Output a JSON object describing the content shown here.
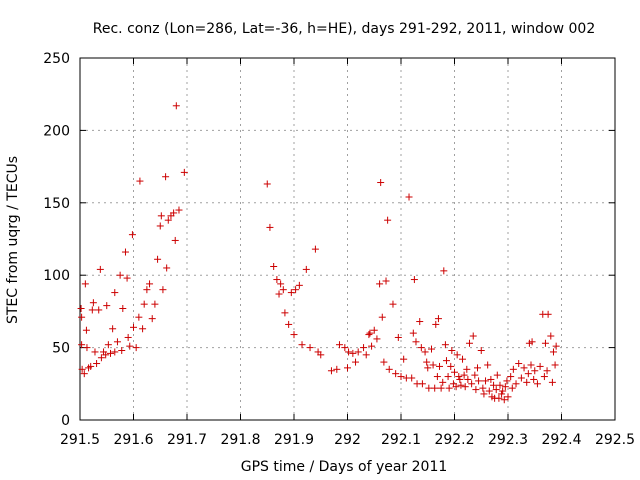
{
  "chart_data": {
    "type": "scatter",
    "title": "Rec. conz (Lon=286, Lat=-36, h=HE), days 291-292, 2011, window 002",
    "xlabel": "GPS time / Days of year 2011",
    "ylabel": "STEC from uqrg / TECUs",
    "xlim": [
      291.5,
      292.5
    ],
    "ylim": [
      0,
      250
    ],
    "xticks": [
      291.5,
      291.6,
      291.7,
      291.8,
      291.9,
      292,
      292.1,
      292.2,
      292.3,
      292.4,
      292.5
    ],
    "xtick_labels": [
      "291.5",
      "291.6",
      "291.7",
      "291.8",
      "291.9",
      "292",
      "292.1",
      "292.2",
      "292.3",
      "292.4",
      "292.5"
    ],
    "yticks": [
      0,
      50,
      100,
      150,
      200,
      250
    ],
    "ytick_labels": [
      "0",
      "50",
      "100",
      "150",
      "200",
      "250"
    ],
    "grid": true,
    "marker": "+",
    "color": "#cc0000",
    "series": [
      {
        "name": "STEC",
        "points": [
          [
            291.502,
            77
          ],
          [
            291.503,
            71
          ],
          [
            291.503,
            52
          ],
          [
            291.504,
            35
          ],
          [
            291.508,
            32
          ],
          [
            291.51,
            94
          ],
          [
            291.512,
            62
          ],
          [
            291.513,
            50
          ],
          [
            291.516,
            36
          ],
          [
            291.52,
            37
          ],
          [
            291.523,
            76
          ],
          [
            291.525,
            81
          ],
          [
            291.528,
            47
          ],
          [
            291.531,
            39
          ],
          [
            291.535,
            76
          ],
          [
            291.538,
            104
          ],
          [
            291.54,
            43
          ],
          [
            291.544,
            47
          ],
          [
            291.548,
            45
          ],
          [
            291.55,
            79
          ],
          [
            291.553,
            52
          ],
          [
            291.557,
            46
          ],
          [
            291.561,
            63
          ],
          [
            291.565,
            88
          ],
          [
            291.565,
            47
          ],
          [
            291.57,
            54
          ],
          [
            291.575,
            100
          ],
          [
            291.578,
            48
          ],
          [
            291.58,
            77
          ],
          [
            291.585,
            116
          ],
          [
            291.588,
            98
          ],
          [
            291.59,
            57
          ],
          [
            291.593,
            51
          ],
          [
            291.598,
            128
          ],
          [
            291.6,
            64
          ],
          [
            291.605,
            50
          ],
          [
            291.61,
            71
          ],
          [
            291.612,
            165
          ],
          [
            291.617,
            63
          ],
          [
            291.62,
            80
          ],
          [
            291.625,
            90
          ],
          [
            291.63,
            94
          ],
          [
            291.635,
            70
          ],
          [
            291.64,
            80
          ],
          [
            291.645,
            111
          ],
          [
            291.65,
            134
          ],
          [
            291.652,
            141
          ],
          [
            291.655,
            90
          ],
          [
            291.66,
            168
          ],
          [
            291.662,
            105
          ],
          [
            291.665,
            138
          ],
          [
            291.67,
            141
          ],
          [
            291.675,
            143
          ],
          [
            291.678,
            124
          ],
          [
            291.68,
            217
          ],
          [
            291.685,
            145
          ],
          [
            291.695,
            171
          ],
          [
            291.85,
            163
          ],
          [
            291.855,
            133
          ],
          [
            291.862,
            106
          ],
          [
            291.868,
            97
          ],
          [
            291.872,
            87
          ],
          [
            291.875,
            94
          ],
          [
            291.88,
            90
          ],
          [
            291.883,
            74
          ],
          [
            291.89,
            66
          ],
          [
            291.895,
            88
          ],
          [
            291.9,
            59
          ],
          [
            291.903,
            90
          ],
          [
            291.91,
            93
          ],
          [
            291.915,
            52
          ],
          [
            291.923,
            104
          ],
          [
            291.93,
            50
          ],
          [
            291.94,
            118
          ],
          [
            291.945,
            47
          ],
          [
            291.95,
            45
          ],
          [
            291.97,
            34
          ],
          [
            291.98,
            35
          ],
          [
            291.985,
            52
          ],
          [
            291.995,
            50
          ],
          [
            292.0,
            36
          ],
          [
            292.002,
            47
          ],
          [
            292.01,
            46
          ],
          [
            292.015,
            40
          ],
          [
            292.02,
            47
          ],
          [
            292.03,
            50
          ],
          [
            292.035,
            45
          ],
          [
            292.04,
            59
          ],
          [
            292.042,
            60
          ],
          [
            292.045,
            51
          ],
          [
            292.05,
            62
          ],
          [
            292.055,
            56
          ],
          [
            292.06,
            94
          ],
          [
            292.062,
            164
          ],
          [
            292.065,
            71
          ],
          [
            292.068,
            40
          ],
          [
            292.072,
            96
          ],
          [
            292.075,
            138
          ],
          [
            292.078,
            35
          ],
          [
            292.085,
            80
          ],
          [
            292.09,
            32
          ],
          [
            292.095,
            57
          ],
          [
            292.1,
            30
          ],
          [
            292.105,
            42
          ],
          [
            292.11,
            29
          ],
          [
            292.115,
            154
          ],
          [
            292.12,
            29
          ],
          [
            292.123,
            60
          ],
          [
            292.125,
            97
          ],
          [
            292.128,
            54
          ],
          [
            292.13,
            25
          ],
          [
            292.135,
            68
          ],
          [
            292.138,
            50
          ],
          [
            292.14,
            25
          ],
          [
            292.145,
            47
          ],
          [
            292.148,
            40
          ],
          [
            292.15,
            36
          ],
          [
            292.152,
            22
          ],
          [
            292.157,
            49
          ],
          [
            292.16,
            38
          ],
          [
            292.163,
            22
          ],
          [
            292.165,
            66
          ],
          [
            292.168,
            30
          ],
          [
            292.17,
            70
          ],
          [
            292.172,
            37
          ],
          [
            292.175,
            22
          ],
          [
            292.178,
            26
          ],
          [
            292.18,
            103
          ],
          [
            292.183,
            52
          ],
          [
            292.185,
            41
          ],
          [
            292.188,
            30
          ],
          [
            292.19,
            22
          ],
          [
            292.193,
            37
          ],
          [
            292.195,
            48
          ],
          [
            292.198,
            25
          ],
          [
            292.2,
            33
          ],
          [
            292.203,
            23
          ],
          [
            292.205,
            45
          ],
          [
            292.208,
            30
          ],
          [
            292.21,
            28
          ],
          [
            292.212,
            24
          ],
          [
            292.215,
            42
          ],
          [
            292.218,
            31
          ],
          [
            292.22,
            23
          ],
          [
            292.223,
            35
          ],
          [
            292.225,
            28
          ],
          [
            292.228,
            53
          ],
          [
            292.232,
            25
          ],
          [
            292.235,
            58
          ],
          [
            292.238,
            31
          ],
          [
            292.24,
            21
          ],
          [
            292.243,
            36
          ],
          [
            292.245,
            27
          ],
          [
            292.25,
            48
          ],
          [
            292.253,
            22
          ],
          [
            292.255,
            18
          ],
          [
            292.258,
            27
          ],
          [
            292.262,
            38
          ],
          [
            292.265,
            20
          ],
          [
            292.268,
            28
          ],
          [
            292.27,
            16
          ],
          [
            292.273,
            24
          ],
          [
            292.275,
            15
          ],
          [
            292.278,
            21
          ],
          [
            292.28,
            31
          ],
          [
            292.283,
            15
          ],
          [
            292.285,
            24
          ],
          [
            292.288,
            18
          ],
          [
            292.29,
            20
          ],
          [
            292.293,
            14
          ],
          [
            292.295,
            23
          ],
          [
            292.298,
            27
          ],
          [
            292.3,
            16
          ],
          [
            292.305,
            30
          ],
          [
            292.308,
            22
          ],
          [
            292.31,
            35
          ],
          [
            292.315,
            25
          ],
          [
            292.32,
            39
          ],
          [
            292.325,
            29
          ],
          [
            292.33,
            36
          ],
          [
            292.335,
            26
          ],
          [
            292.338,
            32
          ],
          [
            292.34,
            53
          ],
          [
            292.343,
            38
          ],
          [
            292.345,
            54
          ],
          [
            292.348,
            28
          ],
          [
            292.35,
            34
          ],
          [
            292.355,
            25
          ],
          [
            292.36,
            37
          ],
          [
            292.365,
            73
          ],
          [
            292.368,
            30
          ],
          [
            292.37,
            53
          ],
          [
            292.373,
            34
          ],
          [
            292.375,
            73
          ],
          [
            292.38,
            58
          ],
          [
            292.383,
            26
          ],
          [
            292.385,
            47
          ],
          [
            292.388,
            38
          ],
          [
            292.39,
            51
          ]
        ]
      }
    ]
  }
}
